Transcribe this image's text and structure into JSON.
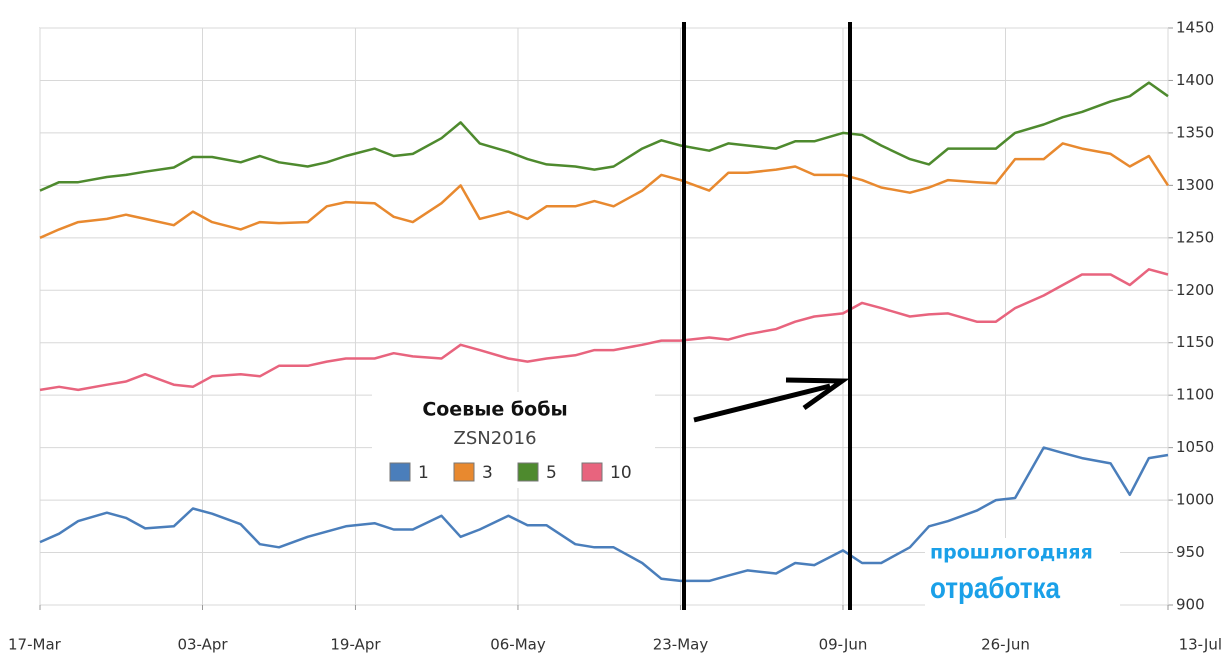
{
  "chart_data": {
    "type": "line",
    "x": [
      0,
      2,
      4,
      7,
      9,
      11,
      14,
      16,
      18,
      21,
      23,
      25,
      28,
      30,
      32,
      35,
      37,
      39,
      42,
      44,
      46,
      49,
      51,
      53,
      56,
      58,
      60,
      63,
      65,
      67,
      70,
      72,
      74,
      77,
      79,
      81,
      84,
      86,
      88,
      91,
      93,
      95,
      98,
      100,
      102,
      105,
      107,
      109,
      112,
      114,
      116,
      118
    ],
    "xlim": [
      0,
      118
    ],
    "xticks": [
      {
        "value": 0,
        "label": "17-Mar"
      },
      {
        "value": 17,
        "label": "03-Apr"
      },
      {
        "value": 33,
        "label": "19-Apr"
      },
      {
        "value": 50,
        "label": "06-May"
      },
      {
        "value": 67,
        "label": "23-May"
      },
      {
        "value": 84,
        "label": "09-Jun"
      },
      {
        "value": 101,
        "label": "26-Jun"
      },
      {
        "value": 118,
        "label": "13-Jul"
      }
    ],
    "ylim": [
      900,
      1450
    ],
    "yticks": [
      900,
      950,
      1000,
      1050,
      1100,
      1150,
      1200,
      1250,
      1300,
      1350,
      1400,
      1450
    ],
    "grid": true,
    "legend_title": "Соевые бобы",
    "legend_subtitle": "ZSN2016",
    "annotations": [
      "прошлогодняя",
      "отработка"
    ],
    "series": [
      {
        "name": "1",
        "color": "#4a7ebb",
        "values": [
          960,
          968,
          980,
          988,
          983,
          973,
          975,
          992,
          987,
          977,
          958,
          955,
          965,
          970,
          975,
          978,
          972,
          972,
          985,
          965,
          972,
          985,
          976,
          976,
          958,
          955,
          955,
          940,
          925,
          923,
          923,
          928,
          933,
          930,
          940,
          938,
          952,
          940,
          940,
          955,
          975,
          980,
          990,
          1000,
          1002,
          1050,
          1045,
          1040,
          1035,
          1005,
          1040,
          1043
        ]
      },
      {
        "name": "3",
        "color": "#e8892f",
        "values": [
          1250,
          1258,
          1265,
          1268,
          1272,
          1268,
          1262,
          1275,
          1265,
          1258,
          1265,
          1264,
          1265,
          1280,
          1284,
          1283,
          1270,
          1265,
          1283,
          1300,
          1268,
          1275,
          1268,
          1280,
          1280,
          1285,
          1280,
          1295,
          1310,
          1305,
          1295,
          1312,
          1312,
          1315,
          1318,
          1310,
          1310,
          1305,
          1298,
          1293,
          1298,
          1305,
          1303,
          1302,
          1325,
          1325,
          1340,
          1335,
          1330,
          1318,
          1328,
          1300
        ]
      },
      {
        "name": "5",
        "color": "#4e8a2e",
        "values": [
          1295,
          1303,
          1303,
          1308,
          1310,
          1313,
          1317,
          1327,
          1327,
          1322,
          1328,
          1322,
          1318,
          1322,
          1328,
          1335,
          1328,
          1330,
          1345,
          1360,
          1340,
          1332,
          1325,
          1320,
          1318,
          1315,
          1318,
          1335,
          1343,
          1338,
          1333,
          1340,
          1338,
          1335,
          1342,
          1342,
          1350,
          1348,
          1338,
          1325,
          1320,
          1335,
          1335,
          1335,
          1350,
          1358,
          1365,
          1370,
          1380,
          1385,
          1398,
          1385
        ]
      },
      {
        "name": "10",
        "color": "#e8647e",
        "values": [
          1105,
          1108,
          1105,
          1110,
          1113,
          1120,
          1110,
          1108,
          1118,
          1120,
          1118,
          1128,
          1128,
          1132,
          1135,
          1135,
          1140,
          1137,
          1135,
          1148,
          1143,
          1135,
          1132,
          1135,
          1138,
          1143,
          1143,
          1148,
          1152,
          1152,
          1155,
          1153,
          1158,
          1163,
          1170,
          1175,
          1178,
          1188,
          1183,
          1175,
          1177,
          1178,
          1170,
          1170,
          1183,
          1195,
          1205,
          1215,
          1215,
          1205,
          1220,
          1215
        ]
      }
    ]
  }
}
